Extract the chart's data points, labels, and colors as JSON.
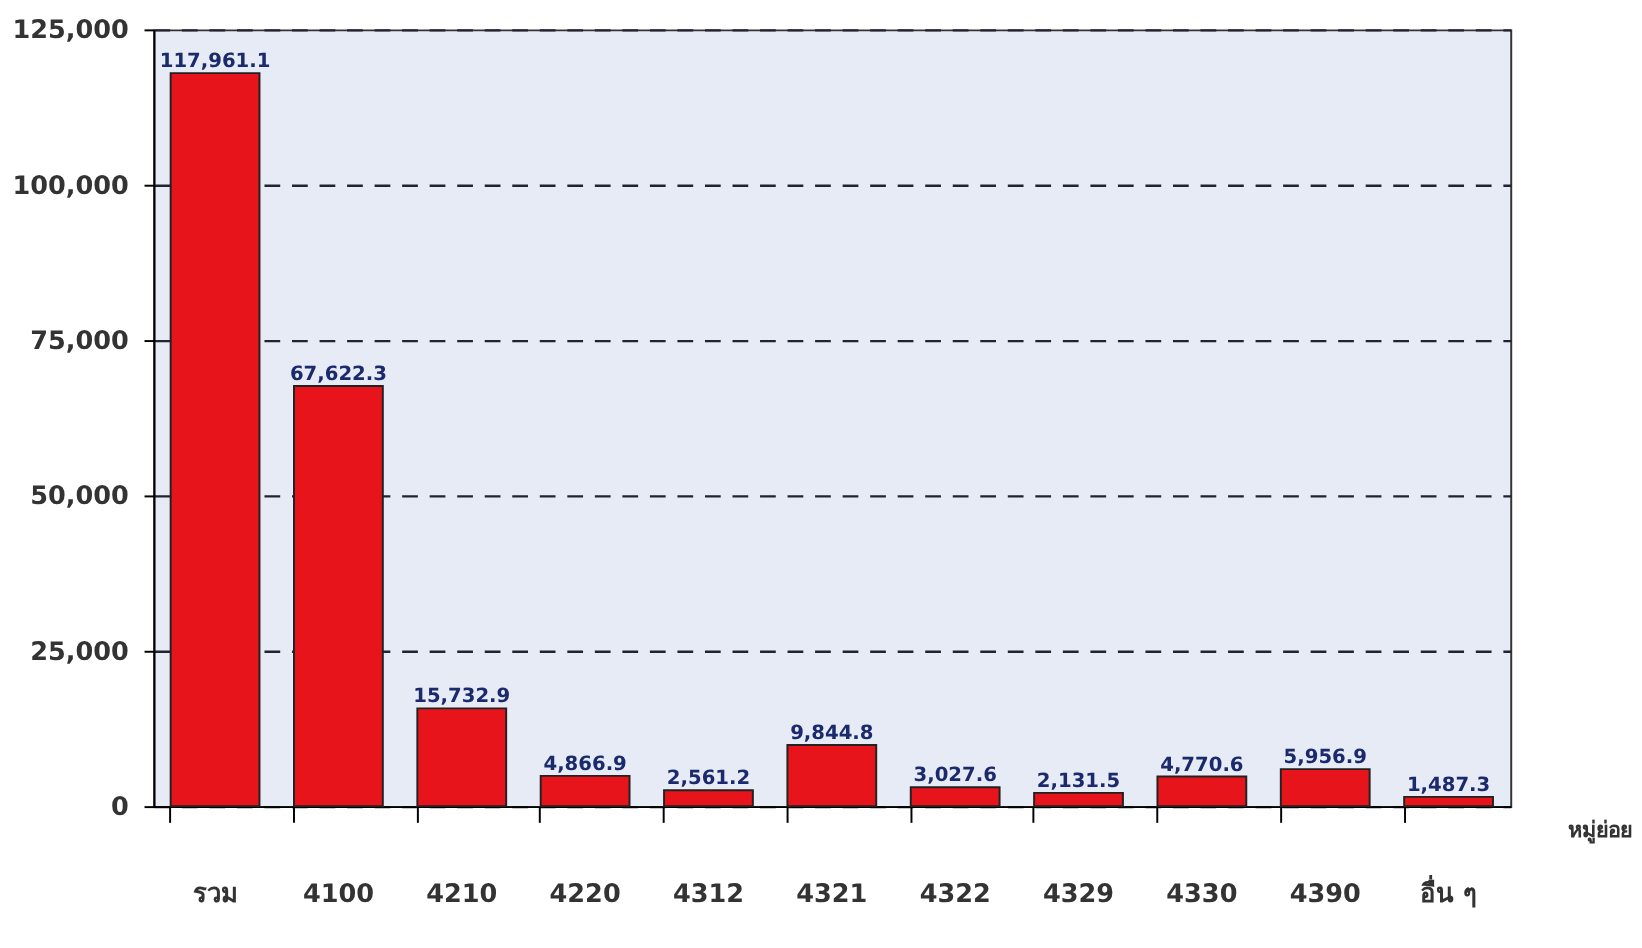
{
  "chart_data": {
    "type": "bar",
    "xlabel": "หมู่ย่อย",
    "categories": [
      "รวม",
      "4100",
      "4210",
      "4220",
      "4312",
      "4321",
      "4322",
      "4329",
      "4330",
      "4390",
      "อื่น ๆ"
    ],
    "values": [
      117961.1,
      67622.3,
      15732.9,
      4866.9,
      2561.2,
      9844.8,
      3027.6,
      2131.5,
      4770.6,
      5956.9,
      1487.3
    ],
    "value_labels": [
      "117,961.1",
      "67,622.3",
      "15,732.9",
      "4,866.9",
      "2,561.2",
      "9,844.8",
      "3,027.6",
      "2,131.5",
      "4,770.6",
      "5,956.9",
      "1,487.3"
    ],
    "color": "#e8141c",
    "ylim": [
      0,
      125000
    ],
    "yticks": [
      0,
      {
        "value": 25000,
        "label": "25,000"
      },
      {
        "value": 50000,
        "label": "50,000"
      },
      {
        "value": 75000,
        "label": "75,000"
      },
      {
        "value": 100000,
        "label": "100,000"
      },
      {
        "value": 125000,
        "label": "125,000"
      }
    ],
    "grid": "y"
  }
}
